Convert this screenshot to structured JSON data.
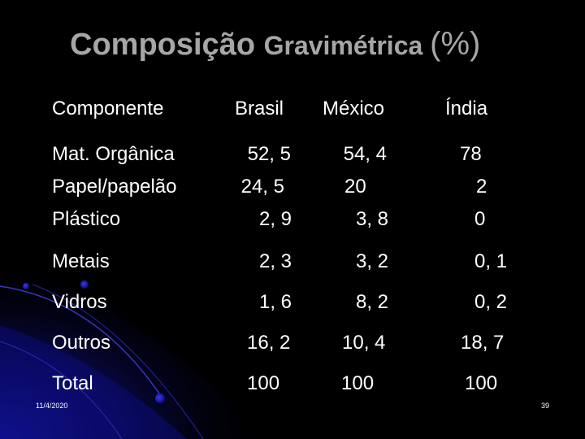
{
  "slide": {
    "title_main": "Composição ",
    "title_sub": "Gravimétrica ",
    "title_pct": "(%)",
    "header": {
      "component": "Componente",
      "brasil": "Brasil",
      "mexico": "México",
      "india": "Índia"
    },
    "rows": [
      {
        "label": "Mat. Orgânica",
        "brasil": "52, 5",
        "mexico": "54, 4",
        "india": "78"
      },
      {
        "label": "Papel/papelão",
        "brasil": "24, 5",
        "mexico": "20",
        "india": "2"
      },
      {
        "label": "Plástico",
        "brasil": "2, 9",
        "mexico": "3, 8",
        "india": "0"
      },
      {
        "label": "Metais",
        "brasil": "2, 3",
        "mexico": "3, 2",
        "india": "0, 1"
      },
      {
        "label": "Vidros",
        "brasil": "1, 6",
        "mexico": "8, 2",
        "india": "0, 2"
      },
      {
        "label": "Outros",
        "brasil": "16, 2",
        "mexico": "10, 4",
        "india": "18, 7"
      },
      {
        "label": "Total",
        "brasil": "100",
        "mexico": "100",
        "india": "100"
      }
    ],
    "footer_date": "11/4/2020",
    "page_number": "39"
  },
  "colors": {
    "background": "#000000",
    "title": "#a6a6a6",
    "text": "#ffffff",
    "accent_blue": "#1a1aa0"
  }
}
